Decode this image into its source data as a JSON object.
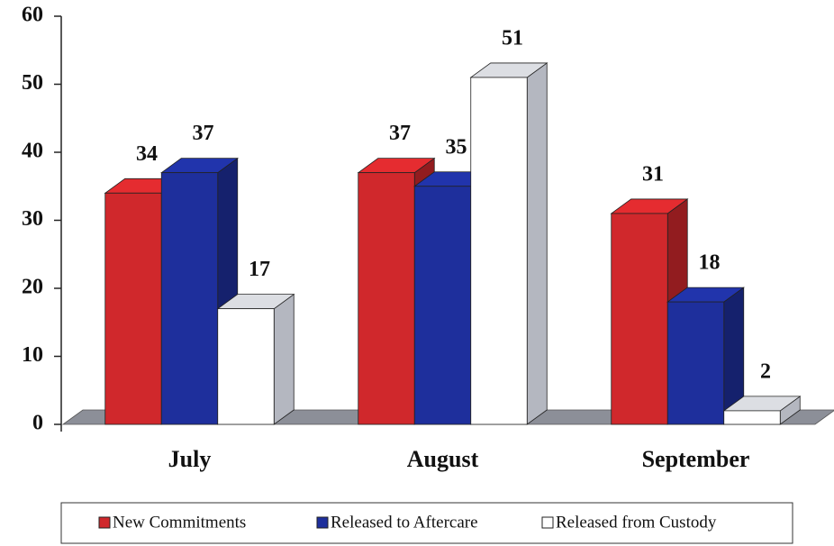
{
  "chart_data": {
    "type": "bar3d",
    "categories": [
      "July",
      "August",
      "September"
    ],
    "series": [
      {
        "name": "New Commitments",
        "color": "#d0282c",
        "values": [
          34,
          37,
          31
        ]
      },
      {
        "name": "Released to Aftercare",
        "color": "#1e2f9c",
        "values": [
          37,
          35,
          18
        ]
      },
      {
        "name": "Released from Custody",
        "color": "#ffffff",
        "values": [
          17,
          51,
          2
        ]
      }
    ],
    "ylim": [
      0,
      60
    ],
    "yticks": [
      0,
      10,
      20,
      30,
      40,
      50,
      60
    ],
    "legend": "bottom"
  }
}
